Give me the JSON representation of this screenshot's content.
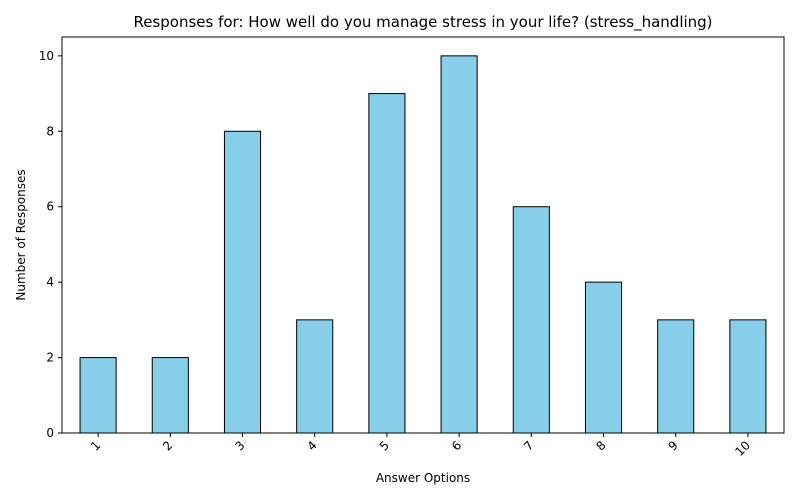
{
  "chart_data": {
    "type": "bar",
    "title": "Responses for: How well do you manage stress in your life? (stress_handling)",
    "xlabel": "Answer Options",
    "ylabel": "Number of Responses",
    "categories": [
      "1",
      "2",
      "3",
      "4",
      "5",
      "6",
      "7",
      "8",
      "9",
      "10"
    ],
    "values": [
      2,
      2,
      8,
      3,
      9,
      10,
      6,
      4,
      3,
      3
    ],
    "ylim": [
      0,
      10.5
    ],
    "yticks": [
      "0",
      "2",
      "4",
      "6",
      "8",
      "10"
    ],
    "bar_color": "#87ceeb",
    "edge_color": "#000000",
    "grid": false,
    "legend": "none"
  }
}
